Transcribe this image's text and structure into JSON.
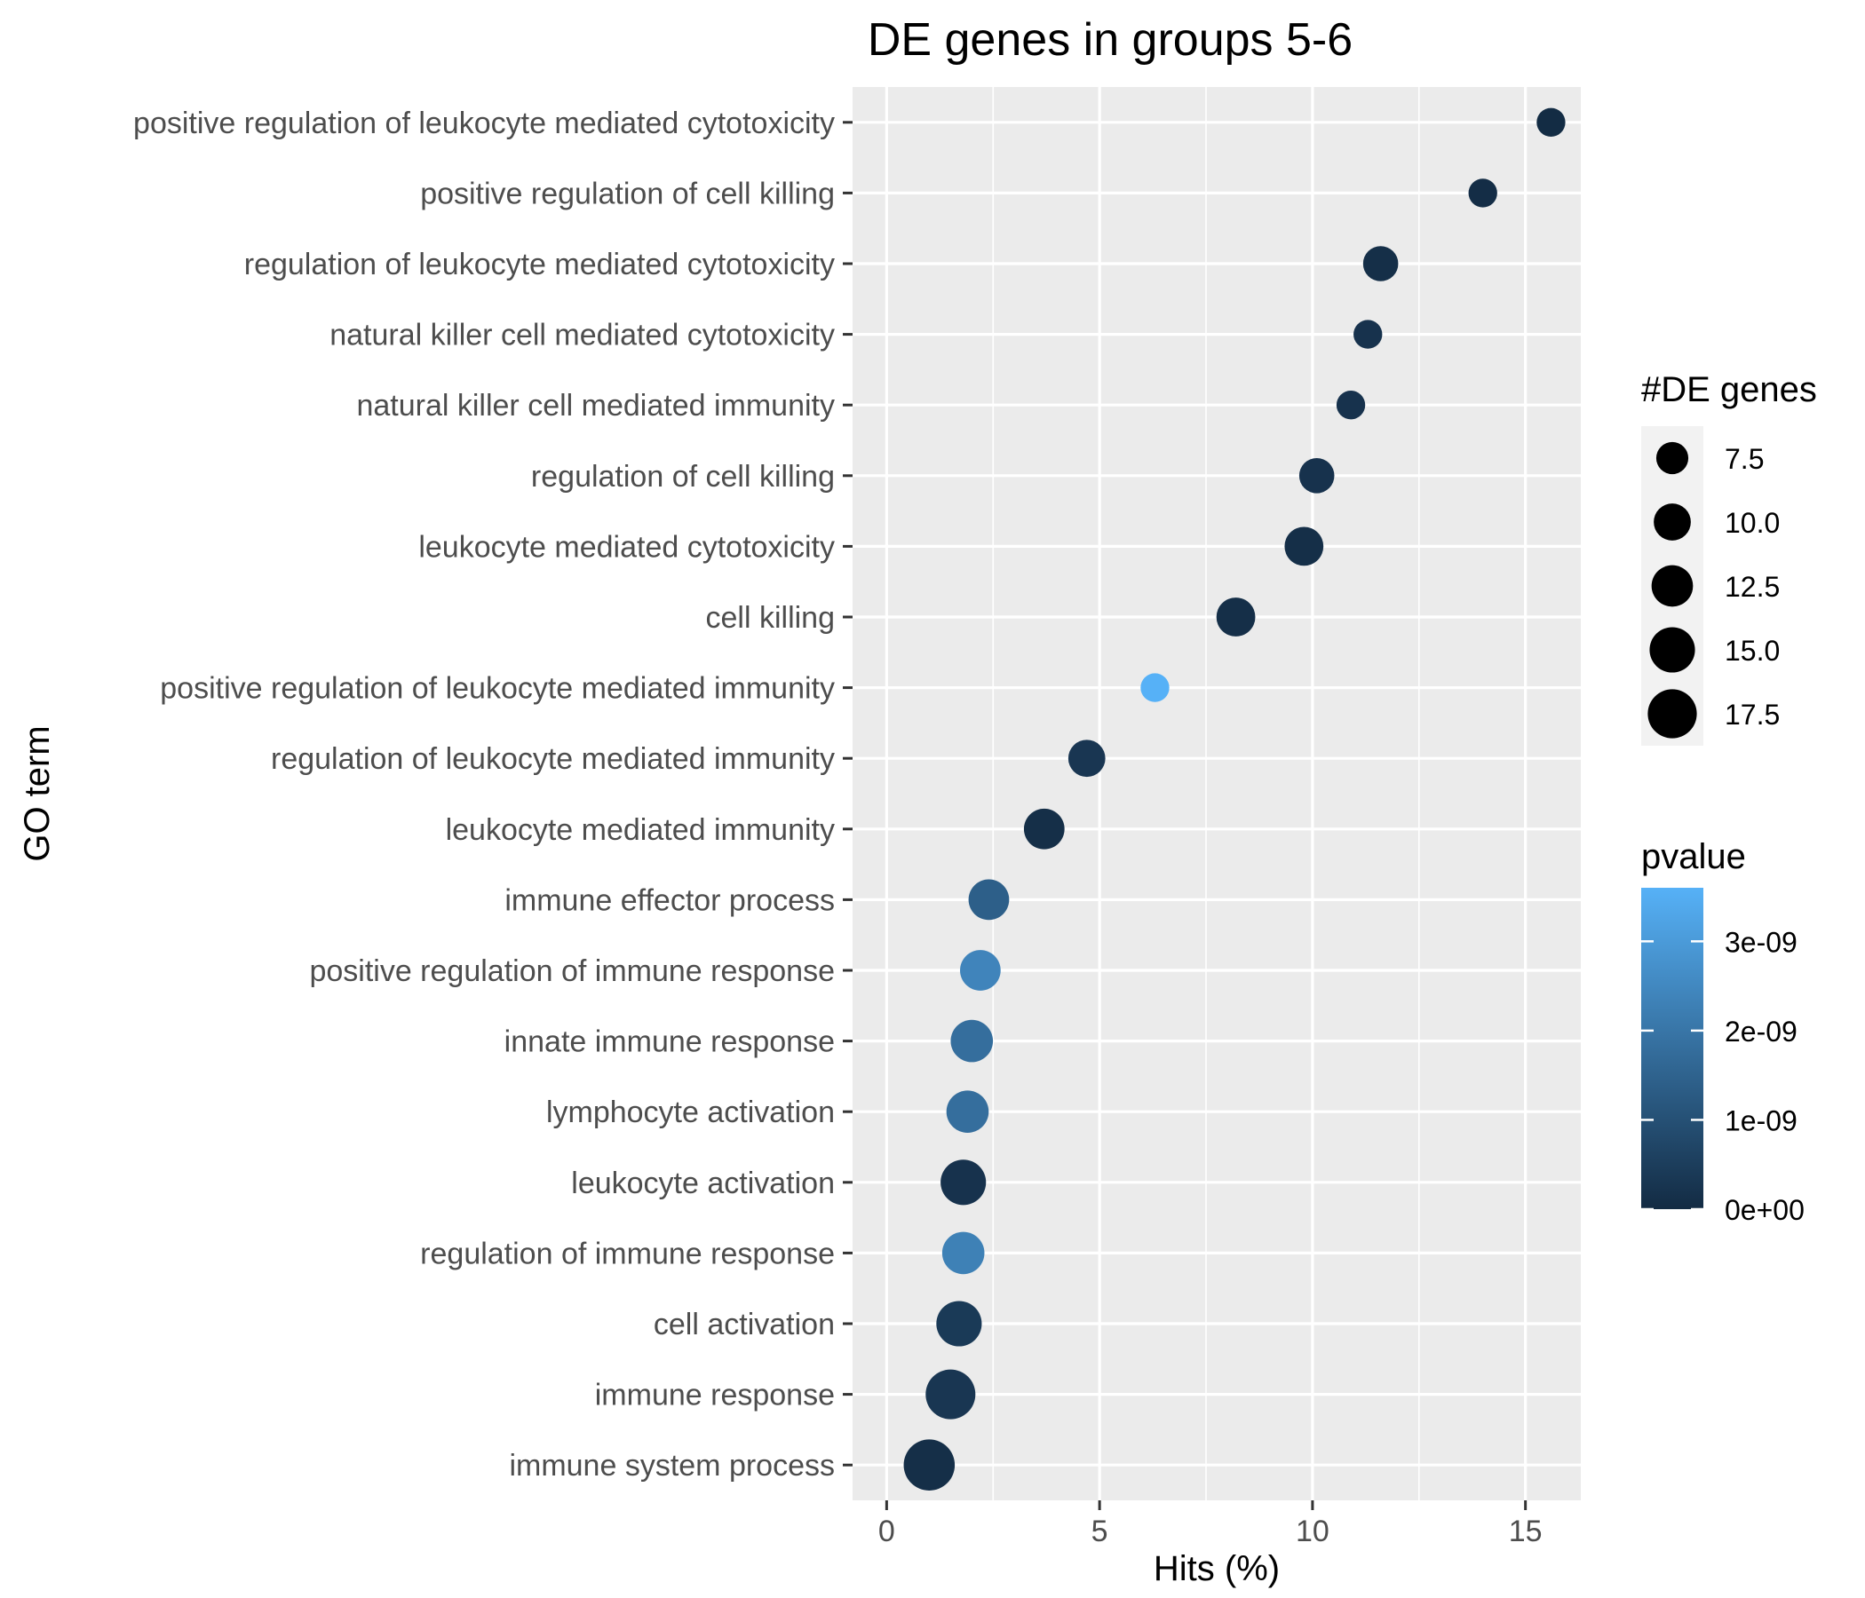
{
  "chart_data": {
    "type": "scatter",
    "title": "DE genes in groups 5-6",
    "xlabel": "Hits (%)",
    "ylabel": "GO term",
    "xlim": [
      -0.8,
      16.3
    ],
    "xticks": [
      0,
      5,
      10,
      15
    ],
    "grid": true,
    "categories": [
      "positive regulation of leukocyte mediated cytotoxicity",
      "positive regulation of cell killing",
      "regulation of leukocyte mediated cytotoxicity",
      "natural killer cell mediated cytotoxicity",
      "natural killer cell mediated immunity",
      "regulation of cell killing",
      "leukocyte mediated cytotoxicity",
      "cell killing",
      "positive regulation of leukocyte mediated immunity",
      "regulation of leukocyte mediated immunity",
      "leukocyte mediated immunity",
      "immune effector process",
      "positive regulation of immune response",
      "innate immune response",
      "lymphocyte activation",
      "leukocyte activation",
      "regulation of immune response",
      "cell activation",
      "immune response",
      "immune system process"
    ],
    "points": [
      {
        "term": "positive regulation of leukocyte mediated cytotoxicity",
        "hits": 15.6,
        "de_genes": 6,
        "pvalue": 2e-11
      },
      {
        "term": "positive regulation of cell killing",
        "hits": 14.0,
        "de_genes": 6,
        "pvalue": 5e-11
      },
      {
        "term": "regulation of leukocyte mediated cytotoxicity",
        "hits": 11.6,
        "de_genes": 9,
        "pvalue": 1e-10
      },
      {
        "term": "natural killer cell mediated cytotoxicity",
        "hits": 11.3,
        "de_genes": 6,
        "pvalue": 2e-10
      },
      {
        "term": "natural killer cell mediated immunity",
        "hits": 10.9,
        "de_genes": 6,
        "pvalue": 2e-10
      },
      {
        "term": "regulation of cell killing",
        "hits": 10.1,
        "de_genes": 9,
        "pvalue": 2e-10
      },
      {
        "term": "leukocyte mediated cytotoxicity",
        "hits": 9.8,
        "de_genes": 11,
        "pvalue": 1e-10
      },
      {
        "term": "cell killing",
        "hits": 8.2,
        "de_genes": 11,
        "pvalue": 1e-10
      },
      {
        "term": "positive regulation of leukocyte mediated immunity",
        "hits": 6.3,
        "de_genes": 6,
        "pvalue": 3.6e-09
      },
      {
        "term": "regulation of leukocyte mediated immunity",
        "hits": 4.7,
        "de_genes": 10,
        "pvalue": 3e-10
      },
      {
        "term": "leukocyte mediated immunity",
        "hits": 3.7,
        "de_genes": 12,
        "pvalue": 1e-10
      },
      {
        "term": "immune effector process",
        "hits": 2.4,
        "de_genes": 12,
        "pvalue": 1.4e-09
      },
      {
        "term": "positive regulation of immune response",
        "hits": 2.2,
        "de_genes": 12,
        "pvalue": 2.4e-09
      },
      {
        "term": "innate immune response",
        "hits": 2.0,
        "de_genes": 13,
        "pvalue": 1.8e-09
      },
      {
        "term": "lymphocyte activation",
        "hits": 1.9,
        "de_genes": 13,
        "pvalue": 1.8e-09
      },
      {
        "term": "leukocyte activation",
        "hits": 1.8,
        "de_genes": 15,
        "pvalue": 2e-10
      },
      {
        "term": "regulation of immune response",
        "hits": 1.8,
        "de_genes": 13,
        "pvalue": 2.3e-09
      },
      {
        "term": "cell activation",
        "hits": 1.7,
        "de_genes": 15,
        "pvalue": 4e-10
      },
      {
        "term": "immune response",
        "hits": 1.5,
        "de_genes": 18,
        "pvalue": 3e-10
      },
      {
        "term": "immune system process",
        "hits": 1.0,
        "de_genes": 19,
        "pvalue": 1e-10
      }
    ],
    "size_legend": {
      "title": "#DE genes",
      "values": [
        7.5,
        10.0,
        12.5,
        15.0,
        17.5
      ],
      "labels": [
        "7.5",
        "10.0",
        "12.5",
        "15.0",
        "17.5"
      ]
    },
    "color_legend": {
      "title": "pvalue",
      "range": [
        0,
        3.6e-09
      ],
      "breaks": [
        0,
        1e-09,
        2e-09,
        3e-09
      ],
      "labels": [
        "0e+00",
        "1e-09",
        "2e-09",
        "3e-09"
      ],
      "low_color": "#132B43",
      "high_color": "#56B1F7"
    },
    "panel_background": "#EBEBEB",
    "grid_color": "#FFFFFF",
    "legend_position": "right"
  }
}
